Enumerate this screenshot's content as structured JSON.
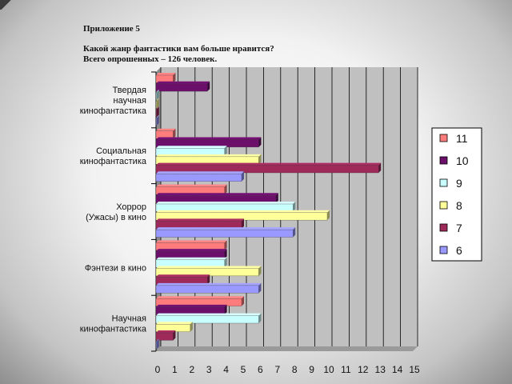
{
  "header": {
    "appendix": "Приложение 5",
    "question": "Какой жанр фантастики вам больше нравится?",
    "total": "Всего опрошенных – 126 человек."
  },
  "chart_data": {
    "type": "bar",
    "orientation": "horizontal",
    "categories": [
      [
        "Твердая",
        "научная",
        "кинофантастика"
      ],
      [
        "Социальная",
        "кинофантастика"
      ],
      [
        "Хоррор",
        "(Ужасы) в кино"
      ],
      [
        "Фэнтези в кино"
      ],
      [
        "Научная",
        "кинофантастика"
      ]
    ],
    "series": [
      {
        "name": "11",
        "color": "#ff7c7c",
        "values": [
          1,
          1,
          4,
          4,
          5
        ]
      },
      {
        "name": "10",
        "color": "#6b0f6b",
        "values": [
          3,
          6,
          7,
          4,
          4
        ]
      },
      {
        "name": "9",
        "color": "#c8ffff",
        "values": [
          0,
          4,
          8,
          4,
          6
        ]
      },
      {
        "name": "8",
        "color": "#ffff99",
        "values": [
          0,
          6,
          10,
          6,
          2
        ]
      },
      {
        "name": "7",
        "color": "#9e2a5a",
        "values": [
          0,
          13,
          5,
          3,
          1
        ]
      },
      {
        "name": "6",
        "color": "#9999ff",
        "values": [
          0,
          5,
          8,
          6,
          0
        ]
      }
    ],
    "x_ticks": [
      "0",
      "1",
      "2",
      "3",
      "4",
      "5",
      "6",
      "7",
      "8",
      "9",
      "10",
      "11",
      "12",
      "13",
      "14",
      "15"
    ],
    "xlim": [
      0,
      15
    ],
    "grid": true,
    "legend_position": "right",
    "legend_order": [
      "11",
      "10",
      "9",
      "8",
      "7",
      "6"
    ]
  }
}
